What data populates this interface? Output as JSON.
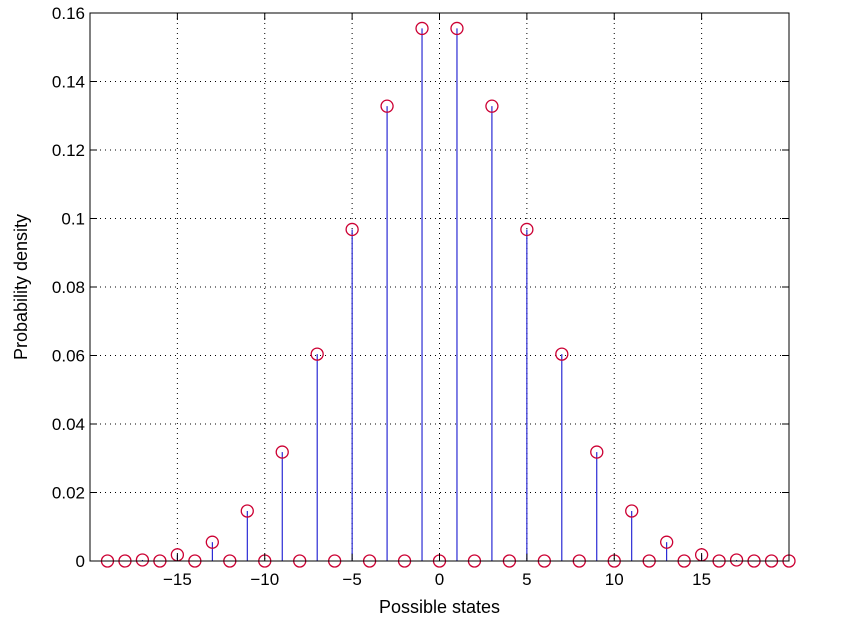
{
  "chart_data": {
    "type": "stem",
    "xlabel": "Possible states",
    "ylabel": "Probability density",
    "xlim": [
      -20,
      20
    ],
    "ylim": [
      0,
      0.16
    ],
    "grid": true,
    "x_ticks": [
      -15,
      -10,
      -5,
      0,
      5,
      10,
      15
    ],
    "x_tick_labels": [
      "−15",
      "−10",
      "−5",
      "0",
      "5",
      "10",
      "15"
    ],
    "y_ticks": [
      0,
      0.02,
      0.04,
      0.06,
      0.08,
      0.1,
      0.12,
      0.14,
      0.16
    ],
    "y_tick_labels": [
      "0",
      "0.02",
      "0.04",
      "0.06",
      "0.08",
      "0.1",
      "0.12",
      "0.14",
      "0.16"
    ],
    "x": [
      -19,
      -18,
      -17,
      -16,
      -15,
      -14,
      -13,
      -12,
      -11,
      -10,
      -9,
      -8,
      -7,
      -6,
      -5,
      -4,
      -3,
      -2,
      -1,
      0,
      1,
      2,
      3,
      4,
      5,
      6,
      7,
      8,
      9,
      10,
      11,
      12,
      13,
      14,
      15,
      16,
      17,
      18,
      19,
      20
    ],
    "y": [
      0,
      0,
      0.0003,
      0,
      0.0018,
      0,
      0.0055,
      0,
      0.0146,
      0,
      0.0318,
      0,
      0.0604,
      0,
      0.0968,
      0,
      0.1328,
      0,
      0.1555,
      0,
      0.1555,
      0,
      0.1328,
      0,
      0.0968,
      0,
      0.0604,
      0,
      0.0318,
      0,
      0.0146,
      0,
      0.0055,
      0,
      0.0018,
      0,
      0.0003,
      0,
      0,
      0
    ],
    "stem_color": "#0000cc",
    "marker_color": "#cc0033"
  }
}
